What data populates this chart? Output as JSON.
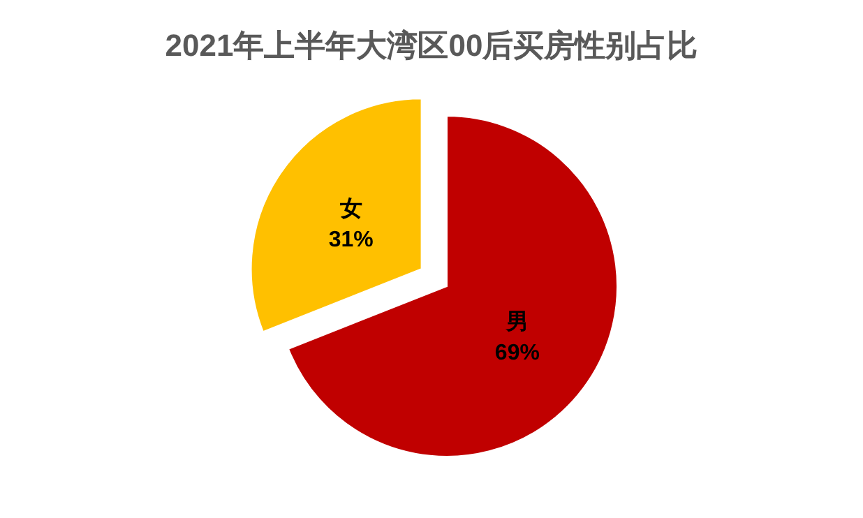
{
  "chart_data": {
    "type": "pie",
    "title": "2021年上半年大湾区00后买房性别占比",
    "categories": [
      "男",
      "女"
    ],
    "values": [
      69,
      31
    ],
    "colors": [
      "#c00000",
      "#ffc000"
    ],
    "value_labels": [
      "69%",
      "31%"
    ]
  }
}
